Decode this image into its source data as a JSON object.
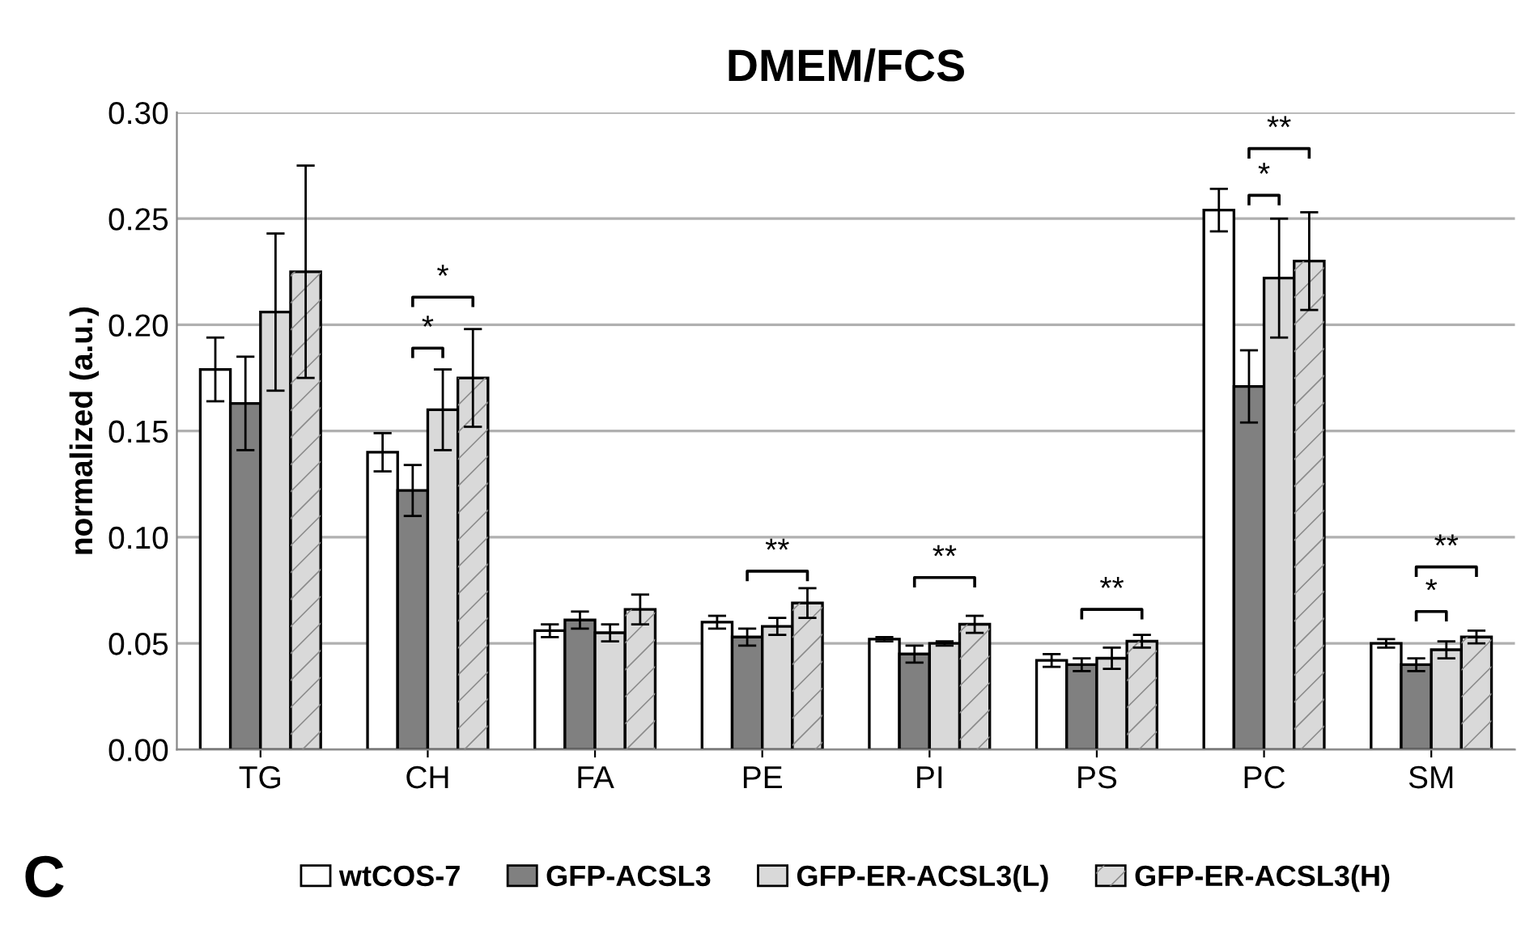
{
  "chart_data": {
    "type": "bar",
    "title": "DMEM/FCS",
    "ylabel": "normalized (a.u.)",
    "categories": [
      "TG",
      "CH",
      "FA",
      "PE",
      "PI",
      "PS",
      "PC",
      "SM"
    ],
    "series": [
      {
        "name": "wtCOS-7",
        "color": "#ffffff",
        "values": [
          0.179,
          0.14,
          0.056,
          0.06,
          0.052,
          0.042,
          0.254,
          0.05
        ],
        "errors": [
          0.015,
          0.009,
          0.003,
          0.003,
          0.001,
          0.003,
          0.01,
          0.002
        ]
      },
      {
        "name": "GFP-ACSL3",
        "color": "#808080",
        "values": [
          0.163,
          0.122,
          0.061,
          0.053,
          0.045,
          0.04,
          0.171,
          0.04
        ],
        "errors": [
          0.022,
          0.012,
          0.004,
          0.004,
          0.004,
          0.003,
          0.017,
          0.003
        ]
      },
      {
        "name": "GFP-ER-ACSL3(L)",
        "color": "#d9d9d9",
        "values": [
          0.206,
          0.16,
          0.055,
          0.058,
          0.05,
          0.043,
          0.222,
          0.047
        ],
        "errors": [
          0.037,
          0.019,
          0.004,
          0.004,
          0.001,
          0.005,
          0.028,
          0.004
        ]
      },
      {
        "name": "GFP-ER-ACSL3(H)",
        "color": "#d9d9d9",
        "values": [
          0.225,
          0.175,
          0.066,
          0.069,
          0.059,
          0.051,
          0.23,
          0.053
        ],
        "errors": [
          0.05,
          0.023,
          0.007,
          0.007,
          0.004,
          0.003,
          0.023,
          0.003
        ]
      }
    ],
    "ylim": [
      0,
      0.3
    ],
    "yticks": [
      {
        "value": 0,
        "label": "0.00"
      },
      {
        "value": 0.05,
        "label": "0.05"
      },
      {
        "value": 0.1,
        "label": "0.10"
      },
      {
        "value": 0.15,
        "label": "0.15"
      },
      {
        "value": 0.2,
        "label": "0.20"
      },
      {
        "value": 0.25,
        "label": "0.25"
      },
      {
        "value": 0.3,
        "label": "0.30"
      }
    ],
    "grid": "y",
    "legend": "bottom",
    "annotations": [
      "*",
      "*",
      "**",
      "**",
      "**",
      "**",
      "*",
      "**",
      "*",
      "C"
    ]
  }
}
